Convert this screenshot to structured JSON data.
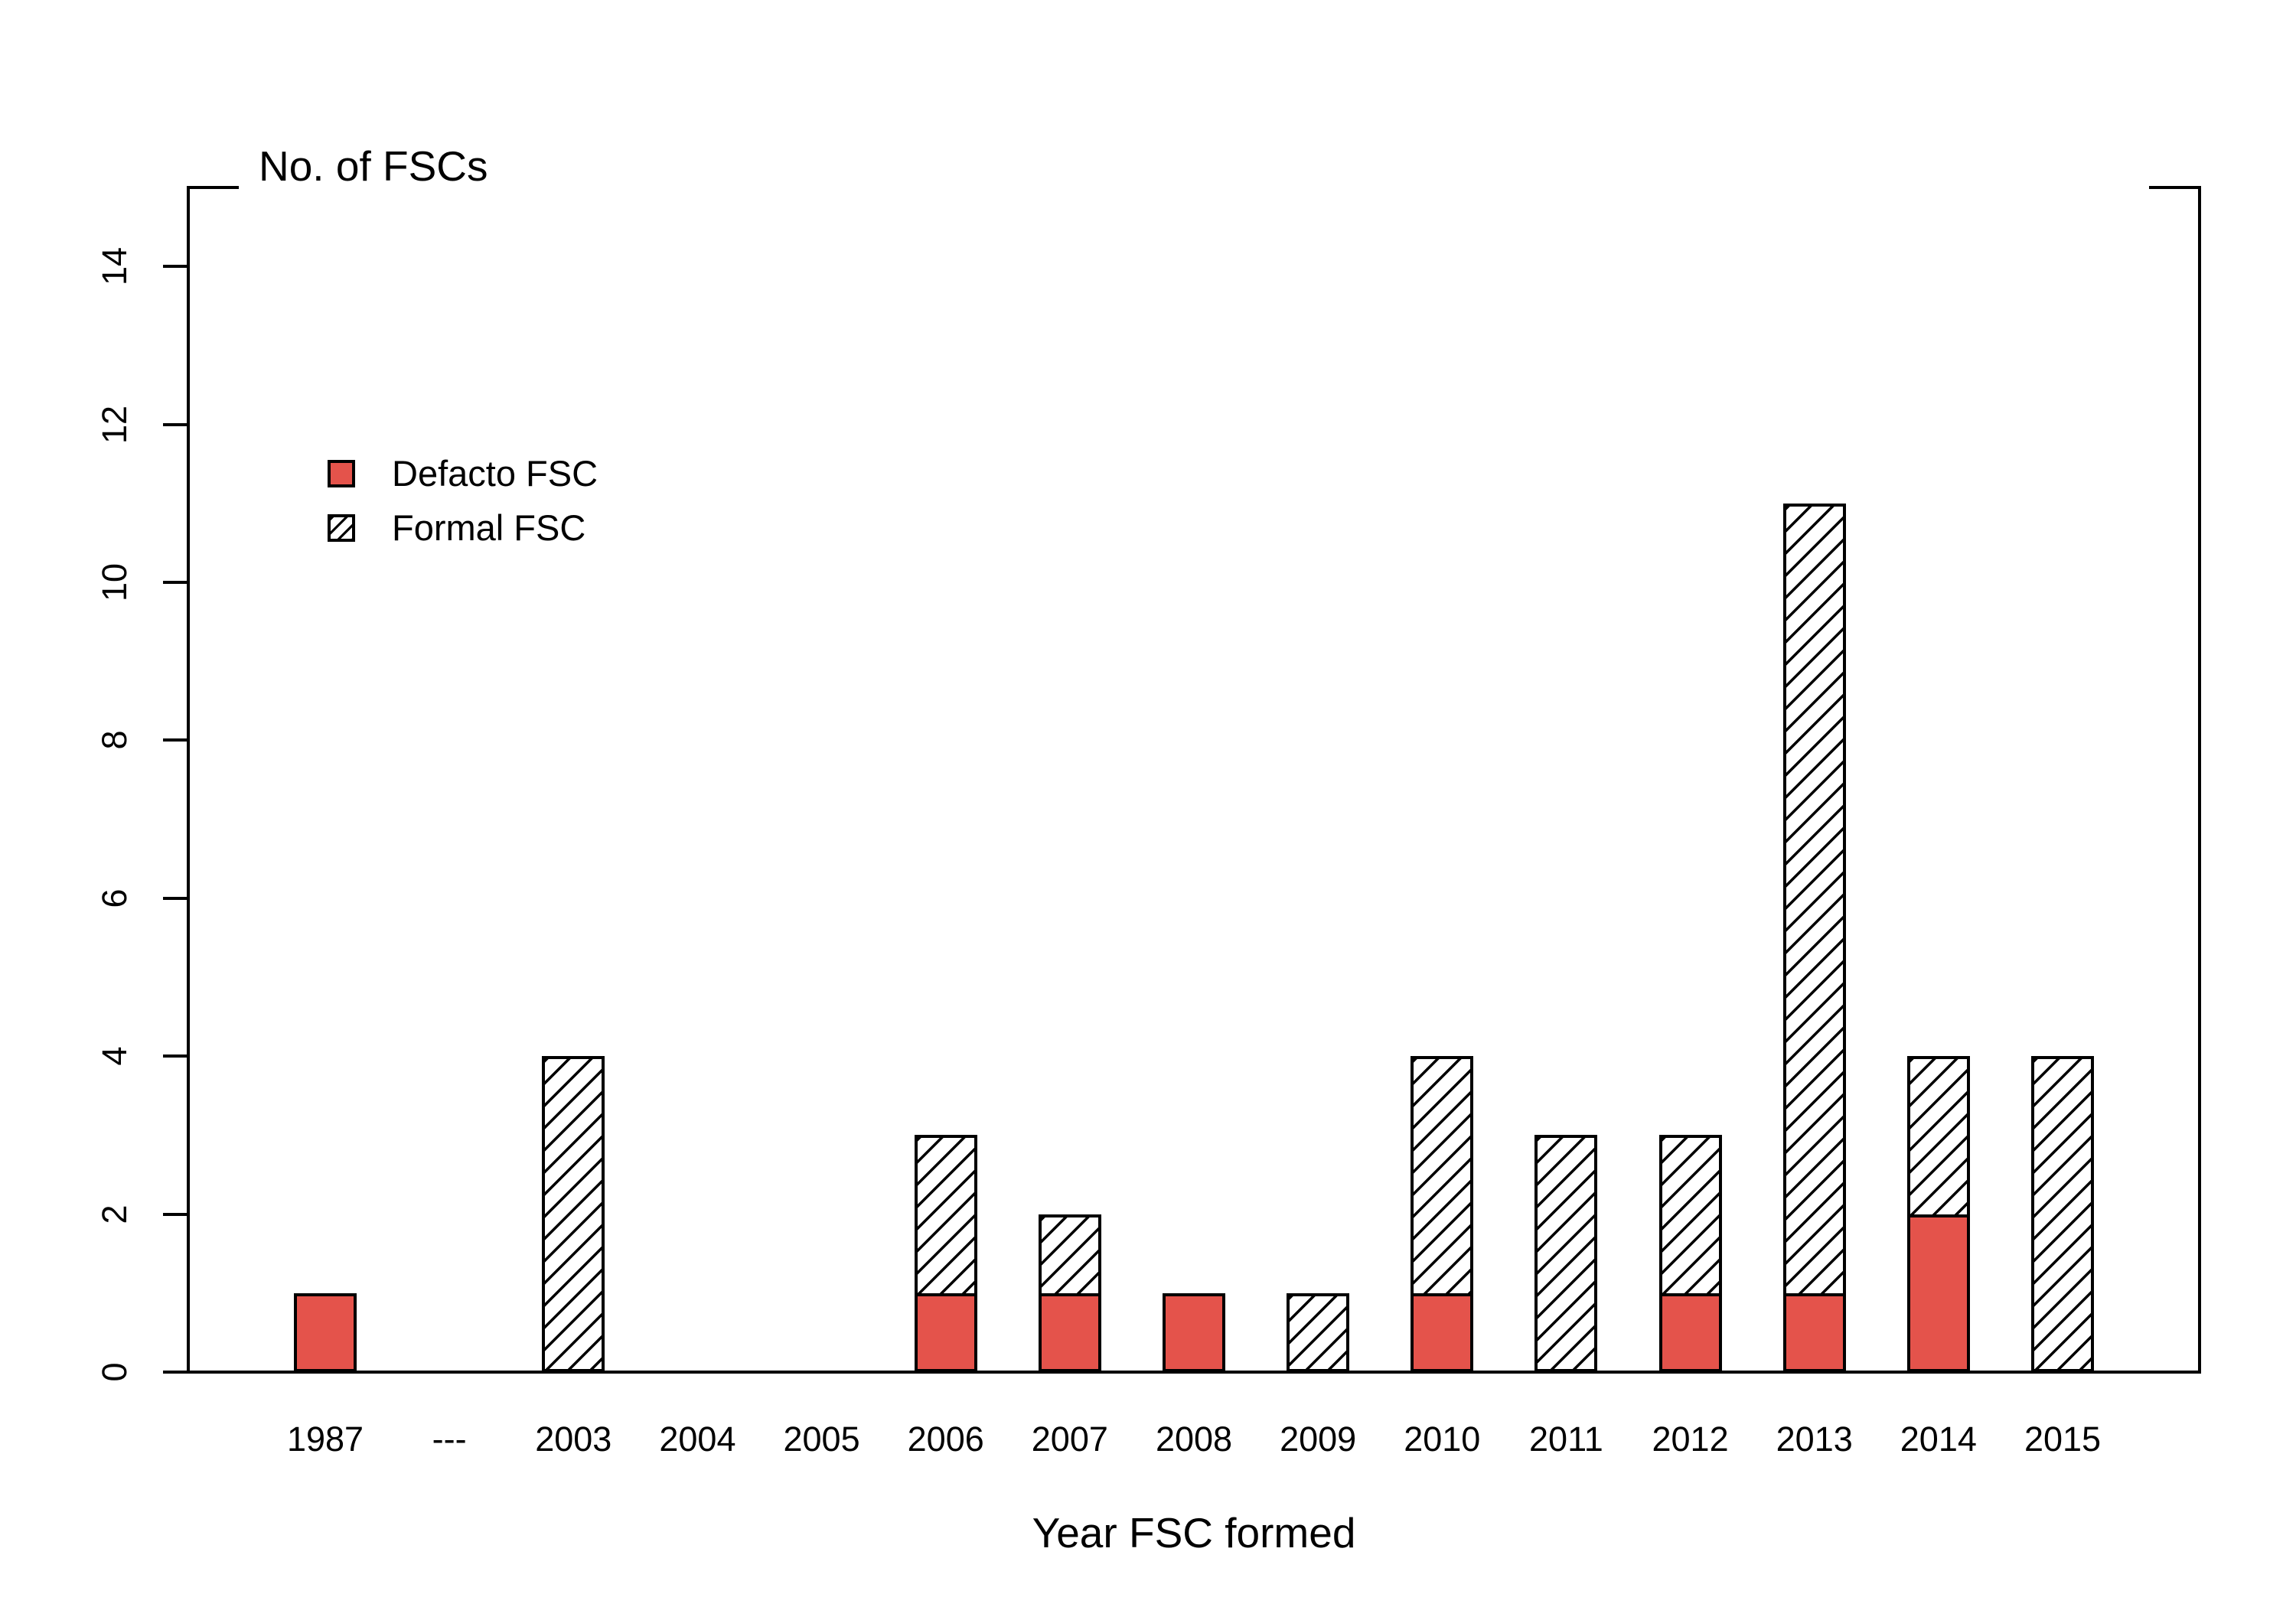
{
  "chart_data": {
    "type": "bar",
    "stacked": true,
    "title": "No. of FSCs",
    "xlabel": "Year FSC formed",
    "categories": [
      "1987",
      "---",
      "2003",
      "2004",
      "2005",
      "2006",
      "2007",
      "2008",
      "2009",
      "2010",
      "2011",
      "2012",
      "2013",
      "2014",
      "2015"
    ],
    "series": [
      {
        "name": "Defacto FSC",
        "style": "solid",
        "color": "#E4534B",
        "values": [
          1,
          0,
          0,
          0,
          0,
          1,
          1,
          1,
          0,
          1,
          0,
          1,
          1,
          2,
          0
        ]
      },
      {
        "name": "Formal FSC",
        "style": "hatch",
        "color": "#000000",
        "values": [
          0,
          0,
          4,
          0,
          0,
          2,
          1,
          0,
          1,
          3,
          3,
          2,
          10,
          2,
          4
        ]
      }
    ],
    "totals": [
      1,
      0,
      4,
      0,
      0,
      3,
      2,
      1,
      1,
      4,
      3,
      3,
      11,
      4,
      4
    ],
    "yticks": [
      0,
      2,
      4,
      6,
      8,
      10,
      12,
      14
    ],
    "ylim": [
      0,
      15
    ],
    "grid": false,
    "legend_position": "upper-left",
    "axis_color": "#000000",
    "background_color": "#ffffff"
  }
}
